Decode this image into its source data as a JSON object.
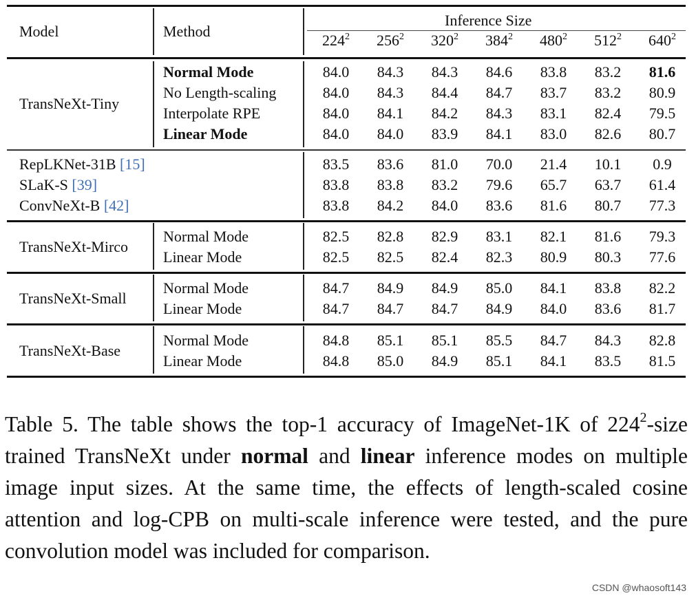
{
  "table": {
    "headers": {
      "model": "Model",
      "method": "Method",
      "group": "Inference Size"
    },
    "sizes": [
      {
        "base": "224",
        "exp": "2"
      },
      {
        "base": "256",
        "exp": "2"
      },
      {
        "base": "320",
        "exp": "2"
      },
      {
        "base": "384",
        "exp": "2"
      },
      {
        "base": "480",
        "exp": "2"
      },
      {
        "base": "512",
        "exp": "2"
      },
      {
        "base": "640",
        "exp": "2"
      }
    ],
    "groups": [
      {
        "model": "TransNeXt-Tiny",
        "rows": [
          {
            "method": "Normal Mode",
            "method_bold": true,
            "values": [
              "84.0",
              "84.3",
              "84.3",
              "84.6",
              "83.8",
              "83.2",
              "81.6"
            ],
            "bold_last": true
          },
          {
            "method": "No Length-scaling",
            "method_bold": false,
            "values": [
              "84.0",
              "84.3",
              "84.4",
              "84.7",
              "83.7",
              "83.2",
              "80.9"
            ],
            "bold_last": false
          },
          {
            "method": "Interpolate RPE",
            "method_bold": false,
            "values": [
              "84.0",
              "84.1",
              "84.2",
              "84.3",
              "83.1",
              "82.4",
              "79.5"
            ],
            "bold_last": false
          },
          {
            "method": "Linear Mode",
            "method_bold": true,
            "values": [
              "84.0",
              "84.0",
              "83.9",
              "84.1",
              "83.0",
              "82.6",
              "80.7"
            ],
            "bold_last": false
          }
        ]
      },
      {
        "model": "",
        "rows": [
          {
            "model_name": "RepLKNet-31B",
            "cite": "[15]",
            "values": [
              "83.5",
              "83.6",
              "81.0",
              "70.0",
              "21.4",
              "10.1",
              "0.9"
            ]
          },
          {
            "model_name": "SLaK-S",
            "cite": "[39]",
            "values": [
              "83.8",
              "83.8",
              "83.2",
              "79.6",
              "65.7",
              "63.7",
              "61.4"
            ]
          },
          {
            "model_name": "ConvNeXt-B",
            "cite": "[42]",
            "values": [
              "83.8",
              "84.2",
              "84.0",
              "83.6",
              "81.6",
              "80.7",
              "77.3"
            ]
          }
        ]
      },
      {
        "model": "TransNeXt-Mirco",
        "rows": [
          {
            "method": "Normal Mode",
            "values": [
              "82.5",
              "82.8",
              "82.9",
              "83.1",
              "82.1",
              "81.6",
              "79.3"
            ]
          },
          {
            "method": "Linear Mode",
            "values": [
              "82.5",
              "82.5",
              "82.4",
              "82.3",
              "80.9",
              "80.3",
              "77.6"
            ]
          }
        ]
      },
      {
        "model": "TransNeXt-Small",
        "rows": [
          {
            "method": "Normal Mode",
            "values": [
              "84.7",
              "84.9",
              "84.9",
              "85.0",
              "84.1",
              "83.8",
              "82.2"
            ]
          },
          {
            "method": "Linear Mode",
            "values": [
              "84.7",
              "84.7",
              "84.7",
              "84.9",
              "84.0",
              "83.6",
              "81.7"
            ]
          }
        ]
      },
      {
        "model": "TransNeXt-Base",
        "rows": [
          {
            "method": "Normal Mode",
            "values": [
              "84.8",
              "85.1",
              "85.1",
              "85.5",
              "84.7",
              "84.3",
              "82.8"
            ]
          },
          {
            "method": "Linear Mode",
            "values": [
              "84.8",
              "85.0",
              "84.9",
              "85.1",
              "84.1",
              "83.5",
              "81.5"
            ]
          }
        ]
      }
    ]
  },
  "caption": {
    "label": "Table 5.",
    "part1": " The table shows the top-1 accuracy of ImageNet-1K of ",
    "size_base": "224",
    "size_exp": "2",
    "part2": "-size trained TransNeXt under ",
    "bold1": "normal",
    "part3": " and ",
    "bold2": "linear",
    "part4": " inference modes on multiple image input sizes. At the same time, the effects of length-scaled cosine attention and log-CPB on multi-scale inference were tested, and the pure convolution model was included for comparison."
  },
  "watermark": "CSDN @whaosoft143"
}
